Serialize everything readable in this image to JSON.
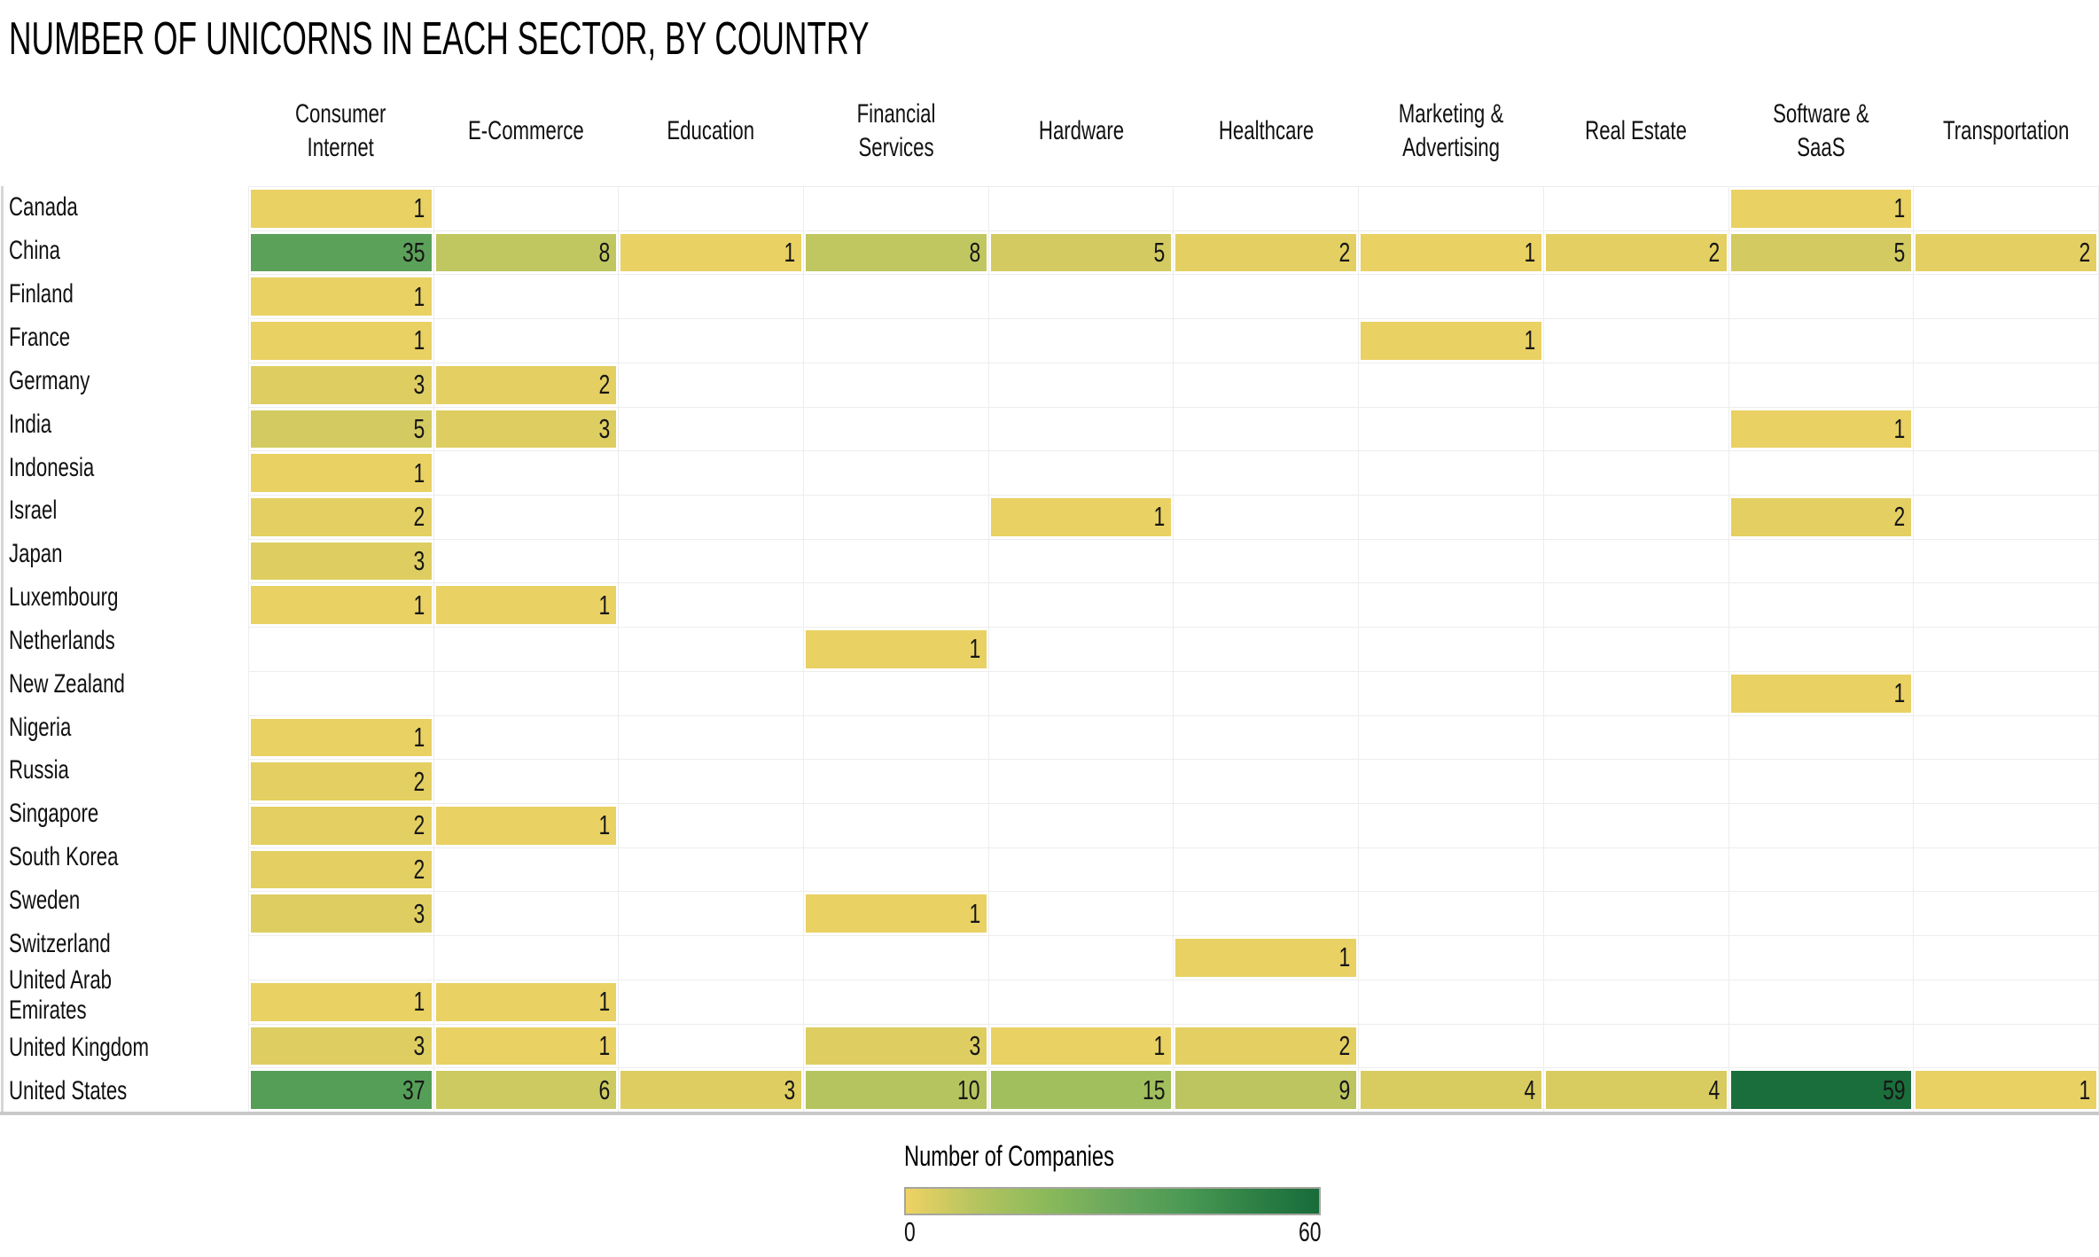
{
  "page": {
    "background": "#ffffff"
  },
  "chart_data": {
    "type": "heatmap",
    "title": "NUMBER OF UNICORNS IN EACH SECTOR, BY COUNTRY",
    "xlabel": "",
    "ylabel": "",
    "grid": true,
    "columns": [
      "Consumer\nInternet",
      "E-Commerce",
      "Education",
      "Financial\nServices",
      "Hardware",
      "Healthcare",
      "Marketing &\nAdvertising",
      "Real Estate",
      "Software & SaaS",
      "Transportation"
    ],
    "rows": [
      {
        "country": "Canada",
        "values": [
          1,
          null,
          null,
          null,
          null,
          null,
          null,
          null,
          1,
          null
        ]
      },
      {
        "country": "China",
        "values": [
          35,
          8,
          1,
          8,
          5,
          2,
          1,
          2,
          5,
          2
        ]
      },
      {
        "country": "Finland",
        "values": [
          1,
          null,
          null,
          null,
          null,
          null,
          null,
          null,
          null,
          null
        ]
      },
      {
        "country": "France",
        "values": [
          1,
          null,
          null,
          null,
          null,
          null,
          1,
          null,
          null,
          null
        ]
      },
      {
        "country": "Germany",
        "values": [
          3,
          2,
          null,
          null,
          null,
          null,
          null,
          null,
          null,
          null
        ]
      },
      {
        "country": "India",
        "values": [
          5,
          3,
          null,
          null,
          null,
          null,
          null,
          null,
          1,
          null
        ]
      },
      {
        "country": "Indonesia",
        "values": [
          1,
          null,
          null,
          null,
          null,
          null,
          null,
          null,
          null,
          null
        ]
      },
      {
        "country": "Israel",
        "values": [
          2,
          null,
          null,
          null,
          1,
          null,
          null,
          null,
          2,
          null
        ]
      },
      {
        "country": "Japan",
        "values": [
          3,
          null,
          null,
          null,
          null,
          null,
          null,
          null,
          null,
          null
        ]
      },
      {
        "country": "Luxembourg",
        "values": [
          1,
          1,
          null,
          null,
          null,
          null,
          null,
          null,
          null,
          null
        ]
      },
      {
        "country": "Netherlands",
        "values": [
          null,
          null,
          null,
          1,
          null,
          null,
          null,
          null,
          null,
          null
        ]
      },
      {
        "country": "New Zealand",
        "values": [
          null,
          null,
          null,
          null,
          null,
          null,
          null,
          null,
          1,
          null
        ]
      },
      {
        "country": "Nigeria",
        "values": [
          1,
          null,
          null,
          null,
          null,
          null,
          null,
          null,
          null,
          null
        ]
      },
      {
        "country": "Russia",
        "values": [
          2,
          null,
          null,
          null,
          null,
          null,
          null,
          null,
          null,
          null
        ]
      },
      {
        "country": "Singapore",
        "values": [
          2,
          1,
          null,
          null,
          null,
          null,
          null,
          null,
          null,
          null
        ]
      },
      {
        "country": "South Korea",
        "values": [
          2,
          null,
          null,
          null,
          null,
          null,
          null,
          null,
          null,
          null
        ]
      },
      {
        "country": "Sweden",
        "values": [
          3,
          null,
          null,
          1,
          null,
          null,
          null,
          null,
          null,
          null
        ]
      },
      {
        "country": "Switzerland",
        "values": [
          null,
          null,
          null,
          null,
          null,
          1,
          null,
          null,
          null,
          null
        ]
      },
      {
        "country": "United Arab Emirates",
        "values": [
          1,
          1,
          null,
          null,
          null,
          null,
          null,
          null,
          null,
          null
        ]
      },
      {
        "country": "United Kingdom",
        "values": [
          3,
          1,
          null,
          3,
          1,
          2,
          null,
          null,
          null,
          null
        ]
      },
      {
        "country": "United States",
        "values": [
          37,
          6,
          3,
          10,
          15,
          9,
          4,
          4,
          59,
          1
        ]
      }
    ],
    "color_scale": {
      "domain": [
        0,
        60
      ],
      "stops": [
        "#EFD263",
        "#B6C45F",
        "#8CBA5B",
        "#6BA85C",
        "#4C9A55",
        "#2F8146",
        "#186C3A"
      ]
    },
    "legend": {
      "title": "Number of Companies",
      "min_label": "0",
      "max_label": "60",
      "position": "bottom-center"
    },
    "gridline_color": "#ededed",
    "axis_line_color": "#c9c9c9",
    "cell_text_color": "#161616"
  }
}
